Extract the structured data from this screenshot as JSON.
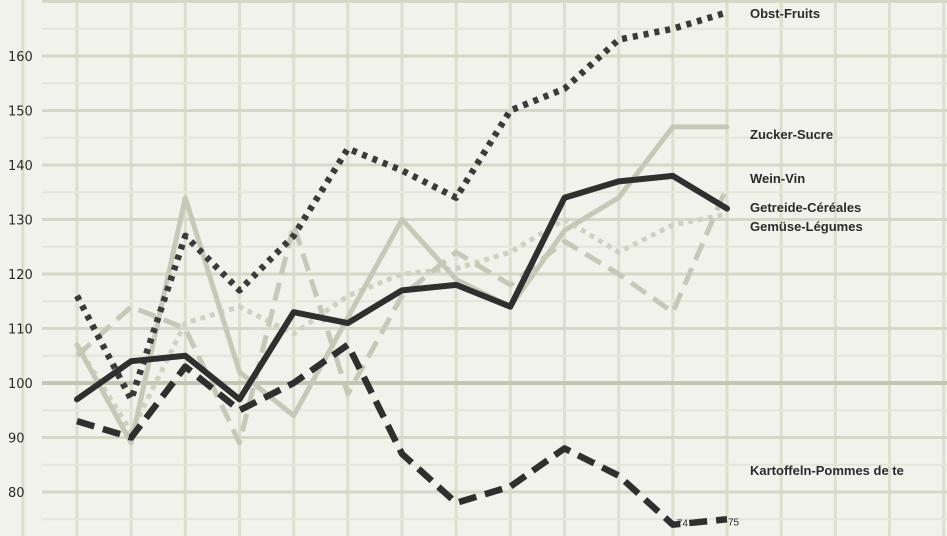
{
  "chart_data": {
    "type": "line",
    "x": [
      1,
      2,
      3,
      4,
      5,
      6,
      7,
      8,
      9,
      10,
      11,
      12,
      13
    ],
    "ylim": [
      75,
      170
    ],
    "yticks": [
      80,
      90,
      100,
      110,
      120,
      130,
      140,
      150,
      160
    ],
    "grid": true,
    "end_labels": [
      "74",
      "75"
    ],
    "series": [
      {
        "name": "Obst-Fruits",
        "color": "#3a3a3a",
        "style": "dotted-heavy",
        "values": [
          116,
          97,
          127,
          117,
          127,
          143,
          139,
          134,
          150,
          154,
          163,
          165,
          168
        ]
      },
      {
        "name": "Zucker-Sucre",
        "color": "#c6c9b8",
        "style": "solid",
        "values": [
          107,
          89,
          134,
          102,
          94,
          112,
          130,
          119,
          114,
          128,
          134,
          147,
          147
        ]
      },
      {
        "name": "Wein-Vin",
        "color": "#2f2f2f",
        "style": "solid-heavy",
        "values": [
          97,
          104,
          105,
          97,
          113,
          111,
          117,
          118,
          114,
          134,
          137,
          138,
          132
        ]
      },
      {
        "name": "Getreide-Céréales",
        "color": "#c6c9b8",
        "style": "dashed",
        "values": [
          105,
          114,
          110,
          89,
          129,
          98,
          116,
          124,
          118,
          126,
          120,
          113,
          136
        ]
      },
      {
        "name": "Gemüse-Légumes",
        "color": "#cfd1c1",
        "style": "dotted",
        "values": [
          107,
          91,
          111,
          114,
          109,
          116,
          120,
          121,
          124,
          130,
          124,
          129,
          131
        ]
      },
      {
        "name": "Kartoffeln-Pommes de terre",
        "color": "#2f2f2f",
        "style": "dashed-heavy",
        "values": [
          93,
          90,
          103,
          95,
          100,
          107,
          87,
          78,
          81,
          88,
          83,
          74,
          75
        ]
      }
    ]
  },
  "labels": {
    "obst": "Obst-Fruits",
    "zucker": "Zucker-Sucre",
    "wein": "Wein-Vin",
    "getreide": "Getreide-Céréales",
    "gemuese": "Gemüse-Légumes",
    "kartoffeln": "Kartoffeln-Pommes de te"
  }
}
